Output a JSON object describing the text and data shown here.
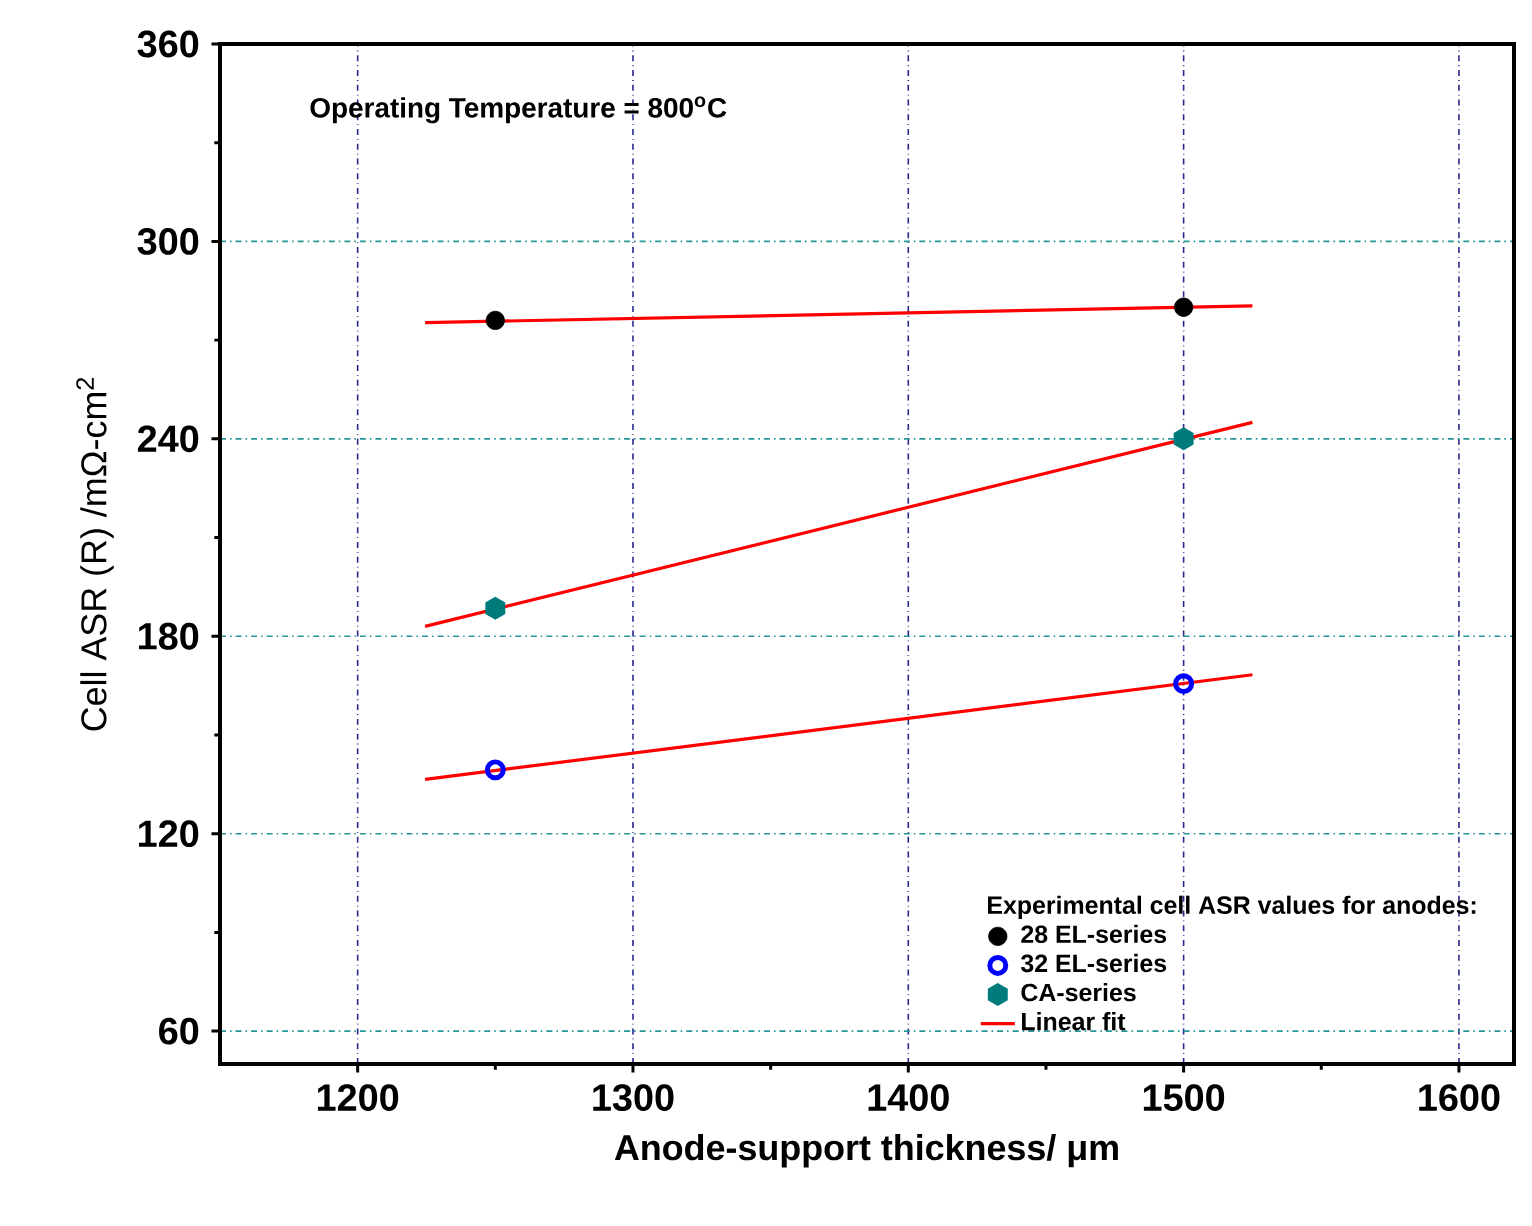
{
  "chart_data": {
    "type": "scatter",
    "xlabel": "Anode-support thickness/ μm",
    "ylabel": "Cell ASR (R) /mΩ-cm$^{2}$",
    "legend_title": "Experimental cell ASR values for  anodes:",
    "annotations": [
      "Operating Temperature = 800$^{o}$C"
    ],
    "xlim": [
      1150,
      1620
    ],
    "ylim": [
      50,
      360
    ],
    "xticks": [
      1200,
      1300,
      1400,
      1500,
      1600
    ],
    "yticks": [
      60,
      120,
      180,
      240,
      300,
      360
    ],
    "grid": true,
    "legend": "bottom right",
    "series": [
      {
        "name": "28 EL-series",
        "color": "#000000",
        "marker": "circle",
        "x": [
          1250,
          1500
        ],
        "values": [
          276,
          280
        ]
      },
      {
        "name": "32 EL-series",
        "color": "#0000ff",
        "marker": "open circle",
        "x": [
          1250,
          1500
        ],
        "values": [
          139.4,
          165.6
        ]
      },
      {
        "name": "CA-series",
        "color": "#007b7b",
        "x": [
          1250,
          1500
        ],
        "values": [
          188.5,
          240
        ]
      },
      {
        "name": "Linear fit",
        "type": "line",
        "color": "#ff0000",
        "marker": "none",
        "x": [
          1224.5,
          1525
        ],
        "values": [
          275.3,
          280.4
        ]
      },
      {
        "type": "line",
        "color": "#ff0000",
        "marker": "none",
        "x": [
          1224.5,
          1525
        ],
        "values": [
          183,
          245
        ]
      },
      {
        "type": "line",
        "color": "#ff0000",
        "marker": "none",
        "x": [
          1224.5,
          1525
        ],
        "values": [
          136.5,
          168.3
        ]
      }
    ]
  }
}
